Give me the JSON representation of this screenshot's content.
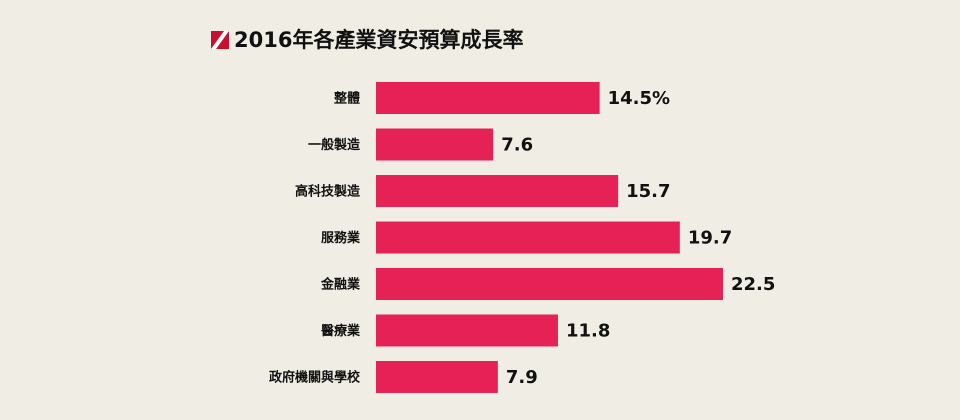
{
  "chart_data": {
    "type": "bar",
    "orientation": "horizontal",
    "title": "2016年各產業資安預算成長率",
    "categories": [
      "整體",
      "一般製造",
      "高科技製造",
      "服務業",
      "金融業",
      "醫療業",
      "政府機關與學校"
    ],
    "values": [
      14.5,
      7.6,
      15.7,
      19.7,
      22.5,
      11.8,
      7.9
    ],
    "value_labels": [
      "14.5%",
      "7.6",
      "15.7",
      "19.7",
      "22.5",
      "11.8",
      "7.9"
    ],
    "color": "#e62156"
  }
}
